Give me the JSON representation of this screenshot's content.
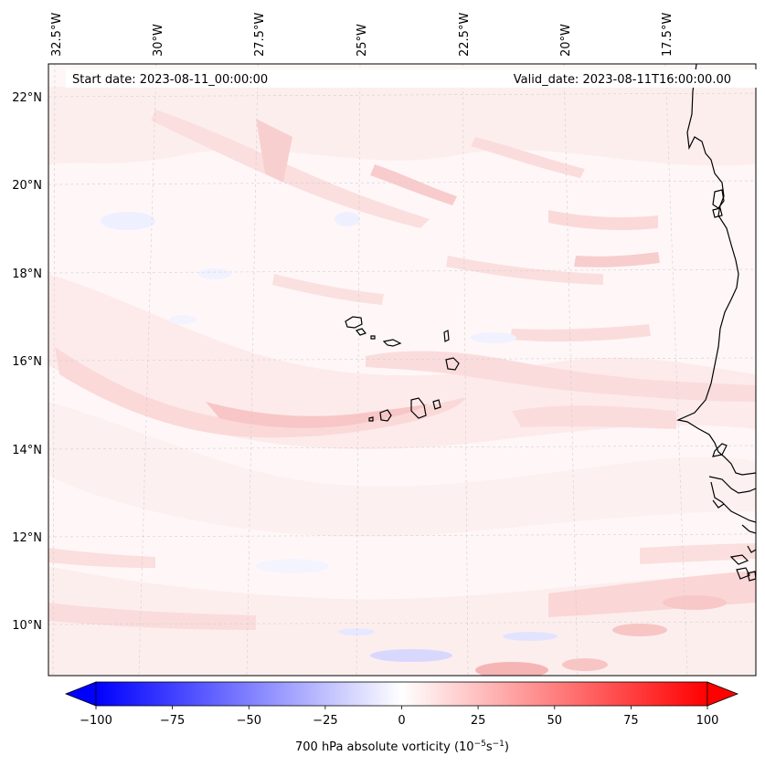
{
  "map": {
    "header": {
      "start_date": "Start date: 2023-08-11_00:00:00",
      "valid_date": "Valid_date: 2023-08-11T16:00:00.00"
    },
    "lon_labels": [
      "32.5°W",
      "30°W",
      "27.5°W",
      "25°W",
      "22.5°W",
      "20°W",
      "17.5°W"
    ],
    "lat_labels": [
      "22°N",
      "20°N",
      "18°N",
      "16°N",
      "14°N",
      "12°N",
      "10°N"
    ],
    "colorbar": {
      "label_main": "700 hPa absolute vorticity (10",
      "label_exp1": "−5",
      "label_mid": "s",
      "label_exp2": "−1",
      "label_end": ")",
      "ticks": [
        "−100",
        "−75",
        "−50",
        "−25",
        "0",
        "25",
        "50",
        "75",
        "100"
      ],
      "low_color": "#0000ff",
      "mid_color": "#ffffff",
      "high_color": "#ff0000"
    },
    "field_colors": {
      "pale_pink": "#fde9e9",
      "light_pink": "#fbdcdc",
      "medium_pink": "#f8c8c8",
      "pale_blue": "#eef0ff",
      "light_blue": "#d8d8ff"
    }
  }
}
